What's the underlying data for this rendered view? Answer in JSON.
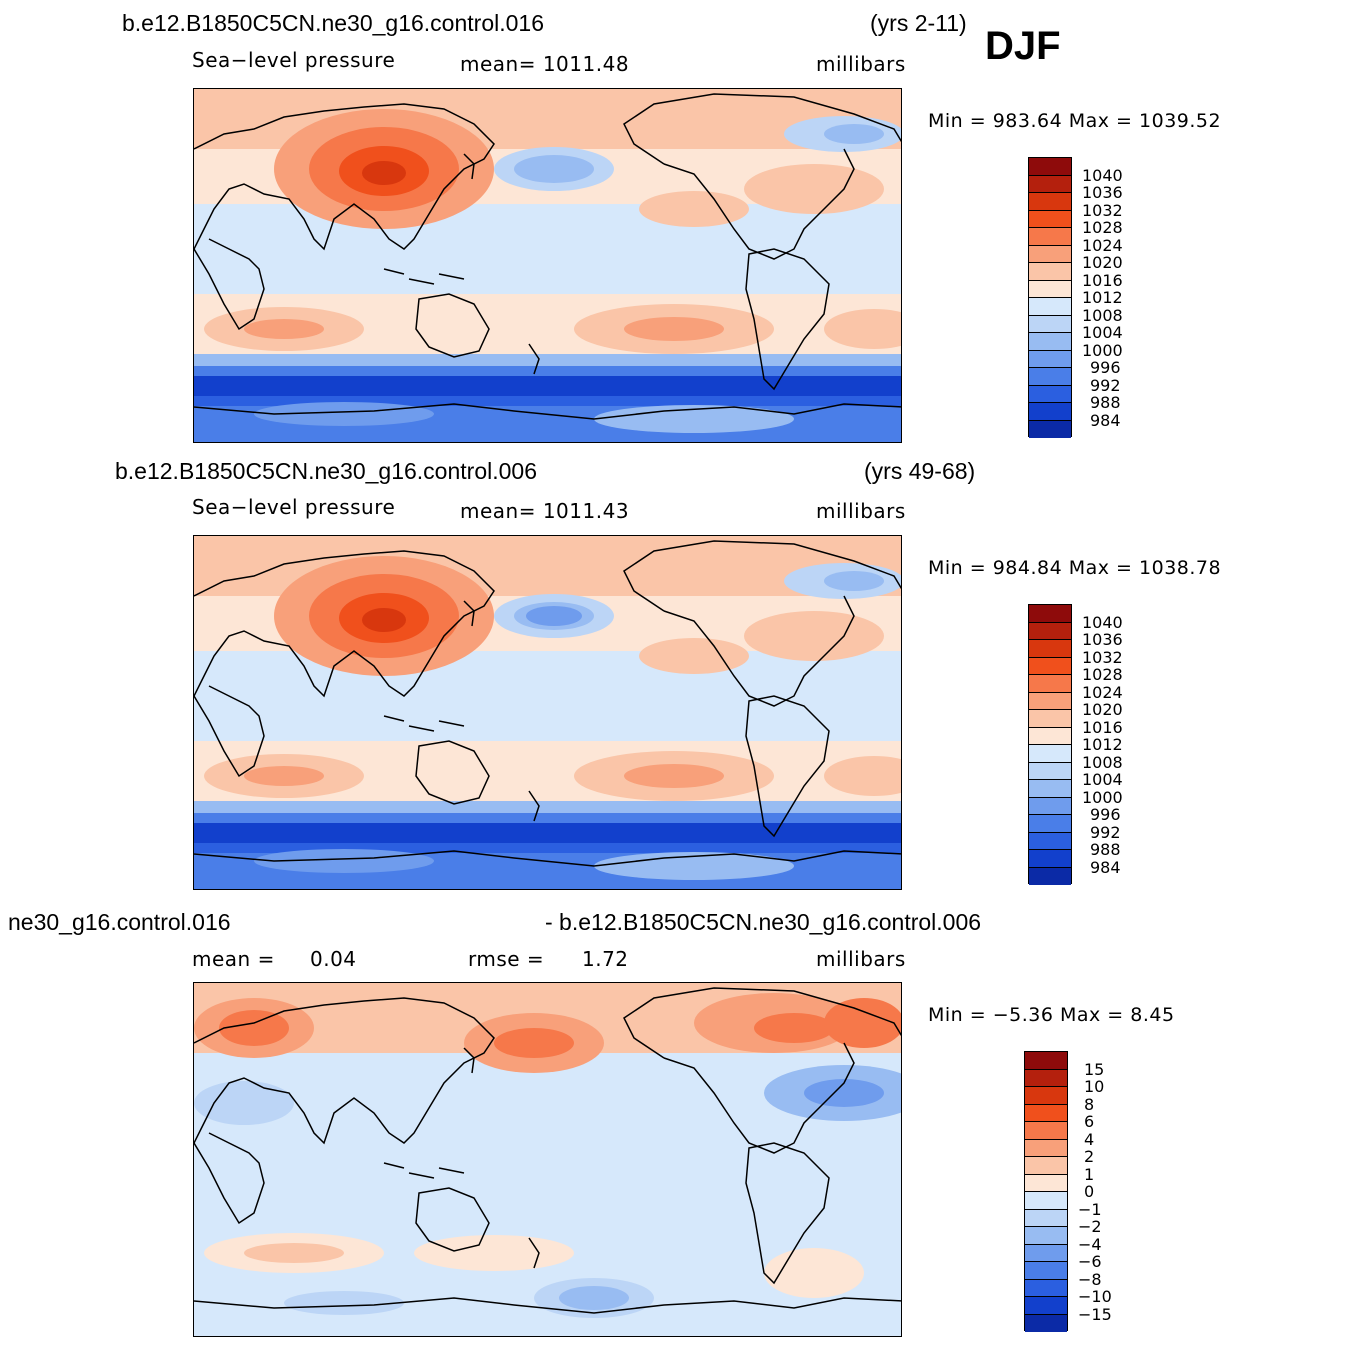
{
  "season": "DJF",
  "panels": [
    {
      "case_name": "b.e12.B1850C5CN.ne30_g16.control.016",
      "years": "(yrs 2-11)",
      "variable": "Sea−level pressure",
      "stat": "mean=  1011.48",
      "units": "millibars",
      "minmax": "Min  =  983.64  Max  =  1039.52",
      "levels": [
        "1040",
        "1036",
        "1032",
        "1028",
        "1024",
        "1020",
        "1016",
        "1012",
        "1008",
        "1004",
        "1000",
        "996",
        "992",
        "988",
        "984"
      ],
      "field": "slp-control-016"
    },
    {
      "case_name": "b.e12.B1850C5CN.ne30_g16.control.006",
      "years": "(yrs 49-68)",
      "variable": "Sea−level pressure",
      "stat": "mean=  1011.43",
      "units": "millibars",
      "minmax": "Min  =  984.84  Max  =  1038.78",
      "levels": [
        "1040",
        "1036",
        "1032",
        "1028",
        "1024",
        "1020",
        "1016",
        "1012",
        "1008",
        "1004",
        "1000",
        "996",
        "992",
        "988",
        "984"
      ],
      "field": "slp-control-006"
    },
    {
      "case_name": "ne30_g16.control.016",
      "case_name_2": "- b.e12.B1850C5CN.ne30_g16.control.006",
      "stat_mean_label": "mean  =",
      "stat_mean_value": "0.04",
      "stat_rmse_label": "rmse  =",
      "stat_rmse_value": "1.72",
      "units": "millibars",
      "minmax": "Min  =    −5.36  Max  =      8.45",
      "levels": [
        "15",
        "10",
        "8",
        "6",
        "4",
        "2",
        "1",
        "0",
        "−1",
        "−2",
        "−4",
        "−6",
        "−8",
        "−10",
        "−15"
      ],
      "field": "slp-difference"
    }
  ],
  "colors": {
    "scale": [
      "#8e0b0b",
      "#b4200d",
      "#d8370e",
      "#f0501c",
      "#f6784a",
      "#f8a07a",
      "#fac5a8",
      "#fde6d6",
      "#d6e8fb",
      "#bcd5f6",
      "#98bcf2",
      "#6f9ced",
      "#4a7ee8",
      "#2b5fe0",
      "#1240cc",
      "#0b2aa6",
      "#071a85"
    ],
    "coast": "#000000"
  }
}
